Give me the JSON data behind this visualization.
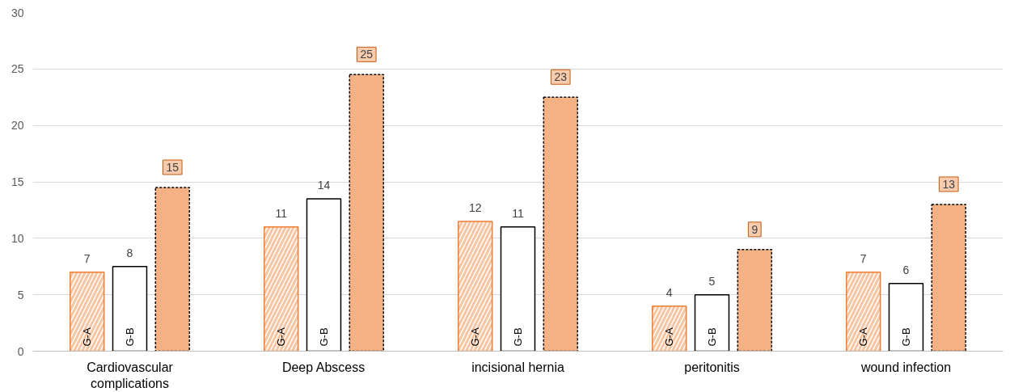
{
  "chart_data": {
    "type": "bar",
    "categories": [
      "Cardiovascular\ncomplications",
      "Deep Abscess",
      "incisional hernia",
      "peritonitis",
      "wound infection"
    ],
    "series": [
      {
        "name": "G-A",
        "color": "#ed7d31",
        "values": [
          7,
          11,
          11.5,
          4,
          7
        ],
        "value_labels": [
          "7",
          "11",
          "12",
          "4",
          "7"
        ]
      },
      {
        "name": "G-B",
        "color": "#ffffff",
        "values": [
          7.5,
          13.5,
          11,
          5,
          6
        ],
        "value_labels": [
          "8",
          "14",
          "11",
          "5",
          "6"
        ]
      },
      {
        "color": "#f4b183",
        "values": [
          14.5,
          24.5,
          22.5,
          9,
          13
        ],
        "value_labels": [
          "15",
          "25",
          "23",
          "9",
          "13"
        ]
      }
    ],
    "ylim": [
      0,
      30
    ],
    "yticks": [
      0,
      5,
      10,
      15,
      20,
      25,
      30
    ],
    "grid": "y",
    "legend": false
  }
}
